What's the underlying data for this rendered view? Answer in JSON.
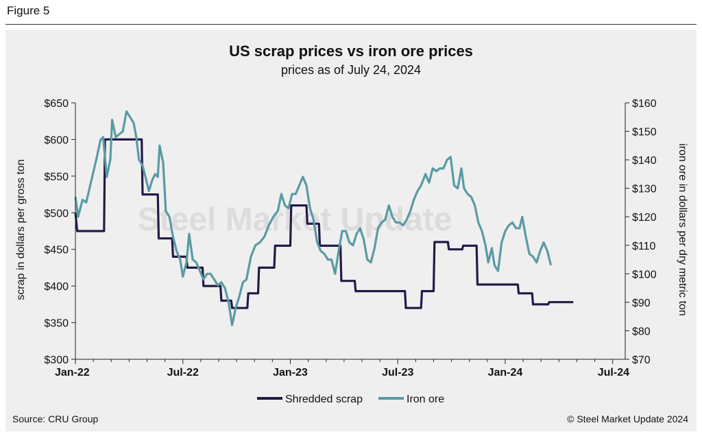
{
  "figure_label": "Figure 5",
  "source": "Source: CRU Group",
  "copyright": "© Steel Market Update 2024",
  "watermark": "Steel Market Update",
  "colors": {
    "scrap": "#231a47",
    "ore": "#5a9aa3"
  },
  "chart_data": {
    "type": "line",
    "title": "US scrap prices vs iron ore prices",
    "subtitle": "prices as of July 24, 2024",
    "ylabel": "scrap in dollars per gross ton",
    "y2label": "iron ore in dollars per dry metric ton",
    "ylim": [
      300,
      650
    ],
    "y2lim": [
      70,
      160
    ],
    "yticks": [
      "$300",
      "$350",
      "$400",
      "$450",
      "$500",
      "$550",
      "$600",
      "$650"
    ],
    "y2ticks": [
      "$70",
      "$80",
      "$90",
      "$100",
      "$110",
      "$120",
      "$130",
      "$140",
      "$150",
      "$160"
    ],
    "x_ticklabels": [
      "Jan-22",
      "Jul-22",
      "Jan-23",
      "Jul-23",
      "Jan-24",
      "Jul-24"
    ],
    "xlim": [
      0,
      30.7
    ],
    "grid": false,
    "legend": "bottom",
    "series": [
      {
        "name": "Shredded scrap",
        "axis": "left",
        "points": [
          [
            0,
            500
          ],
          [
            0.1,
            475
          ],
          [
            1.6,
            475
          ],
          [
            1.65,
            600
          ],
          [
            3.7,
            600
          ],
          [
            3.75,
            525
          ],
          [
            4.6,
            525
          ],
          [
            4.65,
            465
          ],
          [
            5.4,
            465
          ],
          [
            5.45,
            440
          ],
          [
            6.2,
            440
          ],
          [
            6.25,
            425
          ],
          [
            7.1,
            425
          ],
          [
            7.15,
            400
          ],
          [
            8.1,
            400
          ],
          [
            8.15,
            380
          ],
          [
            8.7,
            380
          ],
          [
            8.75,
            370
          ],
          [
            9.6,
            370
          ],
          [
            9.65,
            390
          ],
          [
            10.2,
            390
          ],
          [
            10.25,
            425
          ],
          [
            11.1,
            425
          ],
          [
            11.15,
            455
          ],
          [
            12.0,
            455
          ],
          [
            12.05,
            510
          ],
          [
            12.9,
            510
          ],
          [
            12.95,
            485
          ],
          [
            13.6,
            485
          ],
          [
            13.65,
            455
          ],
          [
            14.8,
            455
          ],
          [
            14.85,
            407
          ],
          [
            15.6,
            407
          ],
          [
            15.65,
            393
          ],
          [
            18.4,
            393
          ],
          [
            18.45,
            370
          ],
          [
            19.3,
            370
          ],
          [
            19.35,
            393
          ],
          [
            20.0,
            393
          ],
          [
            20.05,
            460
          ],
          [
            20.8,
            460
          ],
          [
            20.85,
            450
          ],
          [
            21.6,
            450
          ],
          [
            21.65,
            455
          ],
          [
            22.4,
            455
          ],
          [
            22.45,
            402
          ],
          [
            24.7,
            402
          ],
          [
            24.75,
            390
          ],
          [
            25.5,
            390
          ],
          [
            25.55,
            375
          ],
          [
            26.4,
            375
          ],
          [
            26.45,
            378
          ],
          [
            27.2,
            378
          ],
          [
            27.25,
            378
          ],
          [
            27.8,
            378
          ]
        ]
      },
      {
        "name": "Iron ore",
        "axis": "right",
        "points": [
          [
            0,
            127
          ],
          [
            0.15,
            120
          ],
          [
            0.4,
            126
          ],
          [
            0.6,
            125
          ],
          [
            0.9,
            133
          ],
          [
            1.2,
            141
          ],
          [
            1.4,
            147
          ],
          [
            1.55,
            148
          ],
          [
            1.75,
            134
          ],
          [
            1.95,
            140
          ],
          [
            2.05,
            154
          ],
          [
            2.25,
            148
          ],
          [
            2.45,
            149
          ],
          [
            2.65,
            150
          ],
          [
            2.85,
            157
          ],
          [
            3.05,
            155
          ],
          [
            3.25,
            153
          ],
          [
            3.4,
            148
          ],
          [
            3.55,
            140
          ],
          [
            3.75,
            138
          ],
          [
            3.95,
            133
          ],
          [
            4.1,
            129
          ],
          [
            4.3,
            133
          ],
          [
            4.45,
            135
          ],
          [
            4.6,
            134
          ],
          [
            4.7,
            145
          ],
          [
            4.9,
            139
          ],
          [
            5.05,
            122
          ],
          [
            5.25,
            120
          ],
          [
            5.45,
            113
          ],
          [
            5.65,
            108
          ],
          [
            5.85,
            105
          ],
          [
            6.0,
            99
          ],
          [
            6.2,
            104
          ],
          [
            6.35,
            114
          ],
          [
            6.55,
            105
          ],
          [
            6.75,
            104
          ],
          [
            6.95,
            101
          ],
          [
            7.15,
            98
          ],
          [
            7.35,
            100
          ],
          [
            7.55,
            100
          ],
          [
            7.75,
            98
          ],
          [
            7.95,
            96
          ],
          [
            8.15,
            97
          ],
          [
            8.35,
            95
          ],
          [
            8.55,
            90
          ],
          [
            8.75,
            82
          ],
          [
            8.95,
            88
          ],
          [
            9.15,
            92
          ],
          [
            9.35,
            97
          ],
          [
            9.55,
            98
          ],
          [
            9.8,
            106
          ],
          [
            10.05,
            110
          ],
          [
            10.3,
            111
          ],
          [
            10.55,
            113
          ],
          [
            10.8,
            117
          ],
          [
            11.05,
            120
          ],
          [
            11.3,
            122
          ],
          [
            11.5,
            128
          ],
          [
            11.7,
            124
          ],
          [
            11.9,
            123
          ],
          [
            12.1,
            128
          ],
          [
            12.3,
            128
          ],
          [
            12.5,
            131
          ],
          [
            12.7,
            134
          ],
          [
            12.9,
            131
          ],
          [
            13.1,
            123
          ],
          [
            13.3,
            119
          ],
          [
            13.5,
            111
          ],
          [
            13.7,
            108
          ],
          [
            13.9,
            107
          ],
          [
            14.1,
            105
          ],
          [
            14.3,
            105
          ],
          [
            14.5,
            100
          ],
          [
            14.7,
            108
          ],
          [
            14.9,
            115
          ],
          [
            15.1,
            115
          ],
          [
            15.3,
            111
          ],
          [
            15.5,
            110
          ],
          [
            15.7,
            114
          ],
          [
            15.9,
            116
          ],
          [
            16.1,
            112
          ],
          [
            16.3,
            105
          ],
          [
            16.5,
            104
          ],
          [
            16.7,
            109
          ],
          [
            16.9,
            116
          ],
          [
            17.1,
            118
          ],
          [
            17.3,
            119
          ],
          [
            17.5,
            124
          ],
          [
            17.7,
            120
          ],
          [
            17.9,
            118
          ],
          [
            18.1,
            118
          ],
          [
            18.3,
            117
          ],
          [
            18.5,
            119
          ],
          [
            18.7,
            122
          ],
          [
            18.9,
            126
          ],
          [
            19.1,
            129
          ],
          [
            19.3,
            131
          ],
          [
            19.55,
            135
          ],
          [
            19.75,
            132
          ],
          [
            19.95,
            137
          ],
          [
            20.15,
            136
          ],
          [
            20.35,
            137
          ],
          [
            20.55,
            137
          ],
          [
            20.75,
            140
          ],
          [
            20.95,
            141
          ],
          [
            21.15,
            131
          ],
          [
            21.35,
            130
          ],
          [
            21.55,
            137
          ],
          [
            21.7,
            130
          ],
          [
            21.9,
            128
          ],
          [
            22.1,
            127
          ],
          [
            22.3,
            124
          ],
          [
            22.5,
            118
          ],
          [
            22.7,
            115
          ],
          [
            22.9,
            110
          ],
          [
            23.05,
            104
          ],
          [
            23.25,
            109
          ],
          [
            23.4,
            103
          ],
          [
            23.6,
            101
          ],
          [
            23.8,
            111
          ],
          [
            24.0,
            115
          ],
          [
            24.2,
            117
          ],
          [
            24.4,
            118
          ],
          [
            24.6,
            116
          ],
          [
            24.8,
            116
          ],
          [
            24.95,
            120
          ],
          [
            25.15,
            113
          ],
          [
            25.35,
            107
          ],
          [
            25.55,
            106
          ],
          [
            25.75,
            104
          ],
          [
            25.95,
            108
          ],
          [
            26.15,
            111
          ],
          [
            26.35,
            108
          ],
          [
            26.55,
            103
          ]
        ]
      }
    ]
  }
}
